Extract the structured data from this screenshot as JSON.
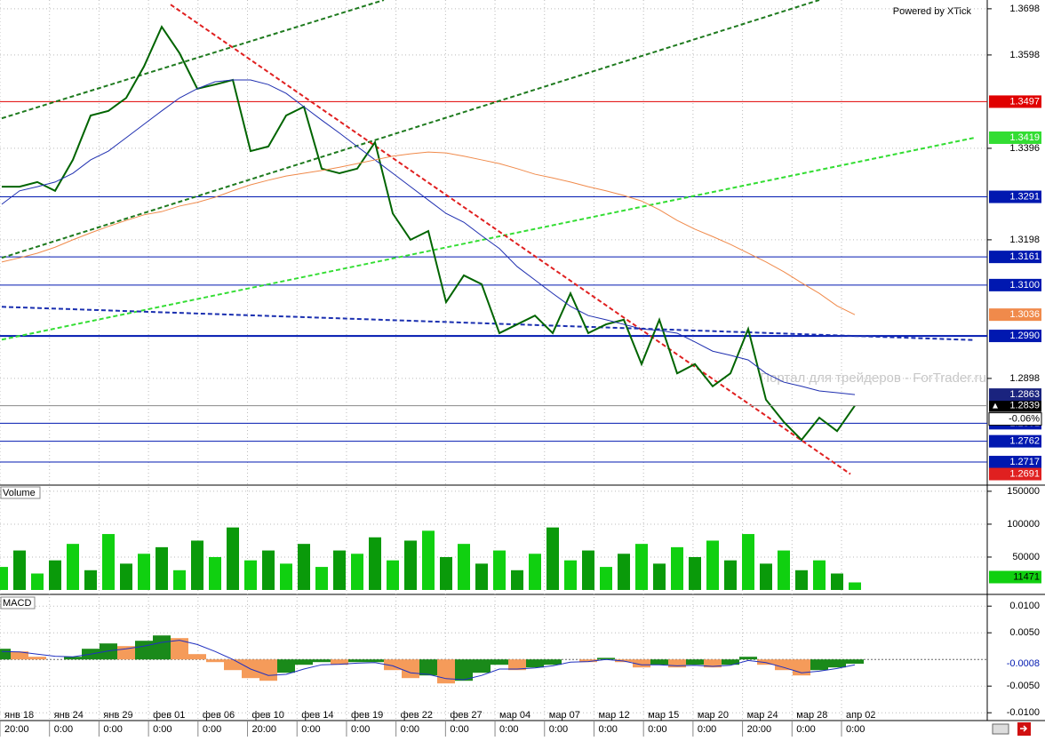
{
  "header": {
    "powered": "Powered by XTick",
    "watermark": "Портал для трейдеров - ForTrader.ru"
  },
  "time_axis": [
    {
      "date": "янв 18",
      "time": "20:00"
    },
    {
      "date": "янв 24",
      "time": "0:00"
    },
    {
      "date": "янв 29",
      "time": "0:00"
    },
    {
      "date": "фев 01",
      "time": "0:00"
    },
    {
      "date": "фев 06",
      "time": "0:00"
    },
    {
      "date": "фев 10",
      "time": "20:00"
    },
    {
      "date": "фев 14",
      "time": "0:00"
    },
    {
      "date": "фев 19",
      "time": "0:00"
    },
    {
      "date": "фев 22",
      "time": "0:00"
    },
    {
      "date": "фев 27",
      "time": "0:00"
    },
    {
      "date": "мар 04",
      "time": "0:00"
    },
    {
      "date": "мар 07",
      "time": "0:00"
    },
    {
      "date": "мар 12",
      "time": "0:00"
    },
    {
      "date": "мар 15",
      "time": "0:00"
    },
    {
      "date": "мар 20",
      "time": "0:00"
    },
    {
      "date": "мар 24",
      "time": "20:00"
    },
    {
      "date": "мар 28",
      "time": "0:00"
    },
    {
      "date": "апр 02",
      "time": "0:00"
    }
  ],
  "chart_data": [
    {
      "type": "line",
      "ylim": [
        1.2669,
        1.3717
      ],
      "yticks": [
        1.3698,
        1.3598,
        1.3396,
        1.3198,
        1.2898
      ],
      "grid": true,
      "series": [
        {
          "color": "#006400",
          "values": [
            1.3313,
            1.3313,
            1.3323,
            1.3304,
            1.3371,
            1.3467,
            1.3477,
            1.3505,
            1.3573,
            1.3659,
            1.3602,
            1.3525,
            1.3534,
            1.3544,
            1.339,
            1.34,
            1.3467,
            1.3486,
            1.3352,
            1.3342,
            1.3352,
            1.3409,
            1.3255,
            1.3198,
            1.3217,
            1.3063,
            1.3121,
            1.3102,
            1.2996,
            1.3015,
            1.3034,
            1.2996,
            1.3082,
            1.2996,
            1.3015,
            1.3025,
            1.2929,
            1.3025,
            1.2909,
            1.2929,
            1.2881,
            1.2909,
            1.3005,
            1.2852,
            1.2804,
            1.2765,
            1.2813,
            1.2784,
            1.2839
          ]
        },
        {
          "color": "#1f2fb0",
          "values": [
            1.3275,
            1.3304,
            1.3313,
            1.3323,
            1.3342,
            1.3371,
            1.339,
            1.3419,
            1.3448,
            1.3477,
            1.3505,
            1.3525,
            1.354,
            1.3544,
            1.3544,
            1.3534,
            1.3515,
            1.3486,
            1.3457,
            1.3429,
            1.34,
            1.3371,
            1.3342,
            1.3313,
            1.3284,
            1.3255,
            1.3236,
            1.3207,
            1.3179,
            1.314,
            1.3111,
            1.3082,
            1.3054,
            1.3034,
            1.3025,
            1.3015,
            1.3005,
            1.3002,
            1.2996,
            1.2977,
            1.2957,
            1.2948,
            1.2938,
            1.2909,
            1.289,
            1.2881,
            1.2871,
            1.2867,
            1.2863
          ]
        },
        {
          "color": "#f08a4b",
          "values": [
            1.315,
            1.3159,
            1.3169,
            1.3182,
            1.3198,
            1.3213,
            1.3227,
            1.324,
            1.3252,
            1.3259,
            1.3271,
            1.3279,
            1.329,
            1.3304,
            1.3317,
            1.3327,
            1.3336,
            1.3342,
            1.3348,
            1.3355,
            1.3363,
            1.3371,
            1.3379,
            1.3384,
            1.3388,
            1.3386,
            1.3379,
            1.3371,
            1.3363,
            1.3352,
            1.334,
            1.3332,
            1.3323,
            1.3313,
            1.3304,
            1.3294,
            1.3282,
            1.3263,
            1.324,
            1.3221,
            1.3205,
            1.3188,
            1.3169,
            1.315,
            1.3129,
            1.3105,
            1.3082,
            1.3055,
            1.3036
          ]
        }
      ],
      "trendlines": [
        {
          "x": [
            0,
            21.5
          ],
          "y": [
            1.3461,
            1.3717
          ],
          "color": "#1e7a1e",
          "end_label": false
        },
        {
          "x": [
            0,
            46
          ],
          "y": [
            1.3159,
            1.3717
          ],
          "color": "#1e7a1e",
          "end_label": false
        },
        {
          "x": [
            0,
            54.75
          ],
          "y": [
            1.2982,
            1.3419
          ],
          "color": "#33dd33",
          "end_label": true
        },
        {
          "x": [
            9.5,
            47.75
          ],
          "y": [
            1.3707,
            1.2691
          ],
          "color": "#e02020",
          "end_label": true
        },
        {
          "x": [
            0,
            54.75
          ],
          "y": [
            1.3053,
            1.2981
          ],
          "color": "#1a2fb0",
          "end_label": false
        }
      ],
      "levels": [
        {
          "value": 1.3497,
          "label": "1.3497",
          "color": "#e00000"
        },
        {
          "value": 1.3291,
          "label": "1.3291",
          "color": "#0018b0"
        },
        {
          "value": 1.3161,
          "label": "1.3161",
          "color": "#0018b0"
        },
        {
          "value": 1.31,
          "label": "1.3100",
          "color": "#0018b0"
        },
        {
          "value": 1.299,
          "label": "1.2990",
          "color": "#0018b0"
        },
        {
          "value": 1.2801,
          "label": "1.2801",
          "color": "#0018b0"
        },
        {
          "value": 1.2762,
          "label": "1.2762",
          "color": "#0018b0"
        },
        {
          "value": 1.2717,
          "label": "1.2717",
          "color": "#0018b0"
        }
      ],
      "change_label": "-0.06%"
    },
    {
      "type": "bar",
      "title": "Volume",
      "ylim": [
        0,
        158000
      ],
      "yticks": [
        150000,
        100000,
        50000
      ],
      "color": "#10d010",
      "values": [
        35000,
        60000,
        25000,
        45000,
        70000,
        30000,
        85000,
        40000,
        55000,
        65000,
        30000,
        75000,
        50000,
        95000,
        45000,
        60000,
        40000,
        70000,
        35000,
        60000,
        55000,
        80000,
        45000,
        75000,
        90000,
        50000,
        70000,
        40000,
        60000,
        30000,
        55000,
        95000,
        45000,
        60000,
        35000,
        55000,
        70000,
        40000,
        65000,
        50000,
        75000,
        45000,
        85000,
        40000,
        60000,
        30000,
        45000,
        25000,
        11471
      ]
    },
    {
      "type": "bar",
      "title": "MACD",
      "ylim": [
        -0.0113,
        0.0117
      ],
      "yticks": [
        {
          "value": 0.01,
          "label": "0.0100"
        },
        {
          "value": 0.005,
          "label": "0.0050"
        },
        {
          "value": -0.005,
          "label": "-0.0050"
        },
        {
          "value": -0.01,
          "label": "-0.0100"
        }
      ],
      "up_color": "#1a8a1a",
      "down_color": "#f59b5a",
      "values": [
        0.002,
        0.0015,
        0.0005,
        0,
        0.0005,
        0.002,
        0.003,
        0.0025,
        0.0035,
        0.0045,
        0.004,
        0.001,
        -0.0005,
        -0.002,
        -0.0035,
        -0.004,
        -0.0025,
        -0.001,
        -0.0005,
        -0.001,
        -0.0005,
        -0.0005,
        -0.002,
        -0.0035,
        -0.003,
        -0.0045,
        -0.004,
        -0.0025,
        -0.001,
        -0.002,
        -0.0015,
        -0.001,
        0,
        -0.0005,
        0.0003,
        -0.0005,
        -0.0015,
        -0.001,
        -0.0015,
        -0.001,
        -0.0015,
        -0.001,
        0.0005,
        -0.001,
        -0.002,
        -0.003,
        -0.002,
        -0.0015,
        -0.0008
      ],
      "signal": {
        "color": "#2030c0",
        "values": [
          0.0015,
          0.0014,
          0.001,
          0.0006,
          0.0005,
          0.001,
          0.0016,
          0.002,
          0.0025,
          0.0032,
          0.0036,
          0.0028,
          0.0015,
          0,
          -0.0018,
          -0.003,
          -0.0028,
          -0.0018,
          -0.001,
          -0.0009,
          -0.0007,
          -0.0006,
          -0.0012,
          -0.0025,
          -0.0028,
          -0.0036,
          -0.0038,
          -0.003,
          -0.0018,
          -0.0018,
          -0.0016,
          -0.0012,
          -0.0005,
          -0.0004,
          0,
          -0.0003,
          -0.001,
          -0.001,
          -0.0012,
          -0.0011,
          -0.0013,
          -0.0011,
          -0.0002,
          -0.0006,
          -0.0015,
          -0.0025,
          -0.0022,
          -0.0017,
          -0.001
        ]
      }
    }
  ]
}
